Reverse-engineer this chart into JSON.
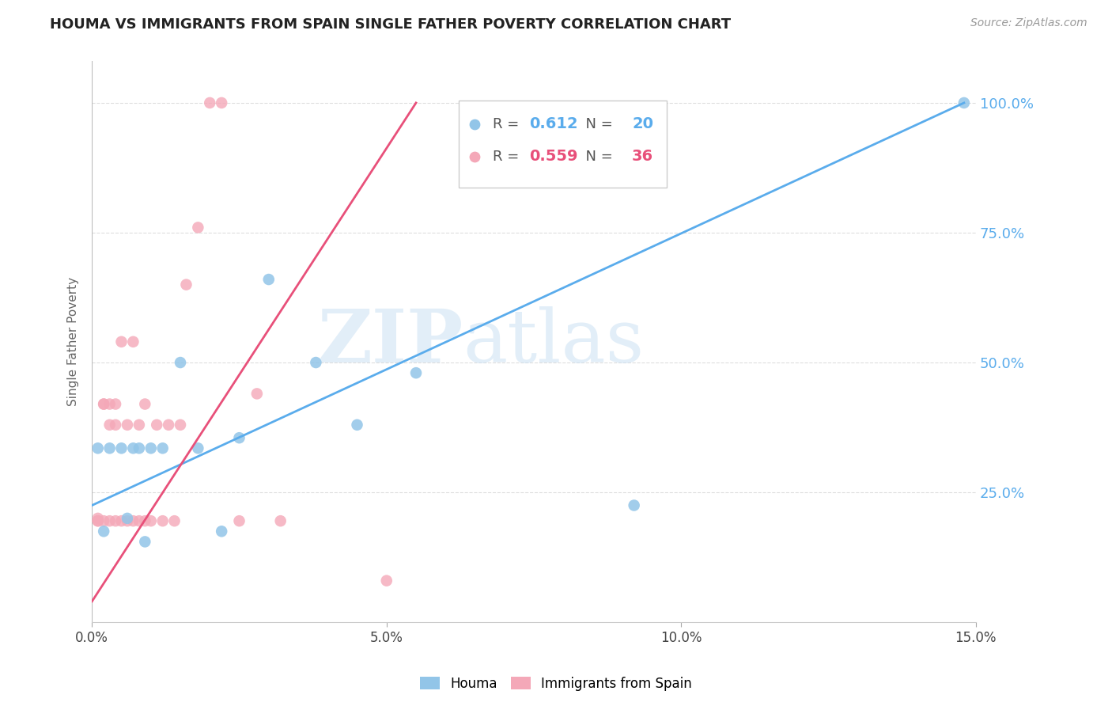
{
  "title": "HOUMA VS IMMIGRANTS FROM SPAIN SINGLE FATHER POVERTY CORRELATION CHART",
  "source": "Source: ZipAtlas.com",
  "ylabel": "Single Father Poverty",
  "x_ticks": [
    "0.0%",
    "5.0%",
    "10.0%",
    "15.0%"
  ],
  "x_tick_vals": [
    0.0,
    0.05,
    0.1,
    0.15
  ],
  "y_ticks_right": [
    "25.0%",
    "50.0%",
    "75.0%",
    "100.0%"
  ],
  "y_tick_vals": [
    0.25,
    0.5,
    0.75,
    1.0
  ],
  "xlim": [
    0.0,
    0.15
  ],
  "ylim": [
    0.0,
    1.08
  ],
  "legend_labels": [
    "Houma",
    "Immigrants from Spain"
  ],
  "houma_R": "0.612",
  "houma_N": "20",
  "spain_R": "0.559",
  "spain_N": "36",
  "houma_color": "#92c5e8",
  "spain_color": "#f4a8b8",
  "houma_line_color": "#5aacec",
  "spain_line_color": "#e8507a",
  "watermark_zip": "ZIP",
  "watermark_atlas": "atlas",
  "houma_scatter_x": [
    0.001,
    0.002,
    0.003,
    0.005,
    0.006,
    0.007,
    0.008,
    0.009,
    0.01,
    0.012,
    0.015,
    0.018,
    0.022,
    0.025,
    0.03,
    0.038,
    0.045,
    0.055,
    0.092,
    0.148
  ],
  "houma_scatter_y": [
    0.335,
    0.175,
    0.335,
    0.335,
    0.2,
    0.335,
    0.335,
    0.155,
    0.335,
    0.335,
    0.5,
    0.335,
    0.175,
    0.355,
    0.66,
    0.5,
    0.38,
    0.48,
    0.225,
    1.0
  ],
  "spain_scatter_x": [
    0.001,
    0.001,
    0.001,
    0.002,
    0.002,
    0.002,
    0.003,
    0.003,
    0.003,
    0.004,
    0.004,
    0.004,
    0.005,
    0.005,
    0.006,
    0.006,
    0.007,
    0.007,
    0.008,
    0.008,
    0.009,
    0.009,
    0.01,
    0.011,
    0.012,
    0.013,
    0.014,
    0.015,
    0.016,
    0.018,
    0.02,
    0.022,
    0.025,
    0.028,
    0.032,
    0.05
  ],
  "spain_scatter_y": [
    0.195,
    0.195,
    0.2,
    0.195,
    0.42,
    0.42,
    0.195,
    0.38,
    0.42,
    0.195,
    0.38,
    0.42,
    0.195,
    0.54,
    0.195,
    0.38,
    0.195,
    0.54,
    0.195,
    0.38,
    0.195,
    0.42,
    0.195,
    0.38,
    0.195,
    0.38,
    0.195,
    0.38,
    0.65,
    0.76,
    1.0,
    1.0,
    0.195,
    0.44,
    0.195,
    0.08
  ],
  "houma_line_x": [
    0.0,
    0.148
  ],
  "houma_line_y": [
    0.225,
    1.0
  ],
  "spain_line_x": [
    0.0,
    0.055
  ],
  "spain_line_y": [
    0.04,
    1.0
  ]
}
